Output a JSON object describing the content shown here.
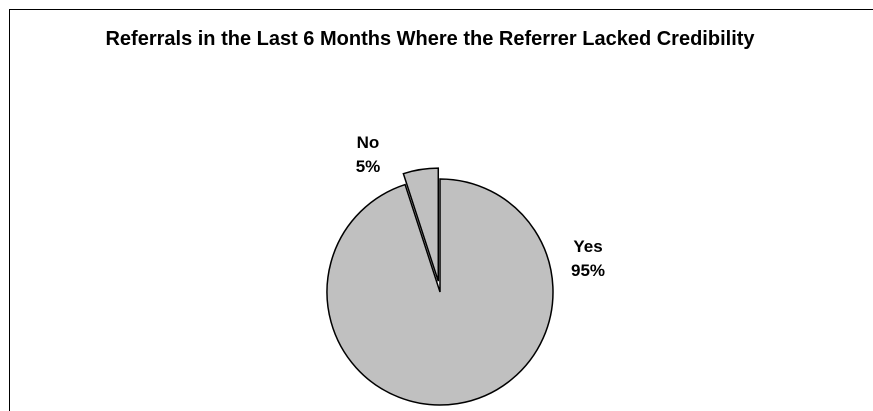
{
  "chart_data": {
    "type": "pie",
    "title": "Referrals in the Last 6 Months Where the Referrer Lacked Credibility",
    "slices": [
      {
        "label": "Yes",
        "value": 95,
        "value_label": "95%",
        "color": "#c0c0c0",
        "exploded": false
      },
      {
        "label": "No",
        "value": 5,
        "value_label": "5%",
        "color": "#c0c0c0",
        "exploded": true
      }
    ],
    "start_angle": "12 o'clock",
    "direction": "clockwise",
    "legend": "none",
    "label_style": "category and percent"
  }
}
